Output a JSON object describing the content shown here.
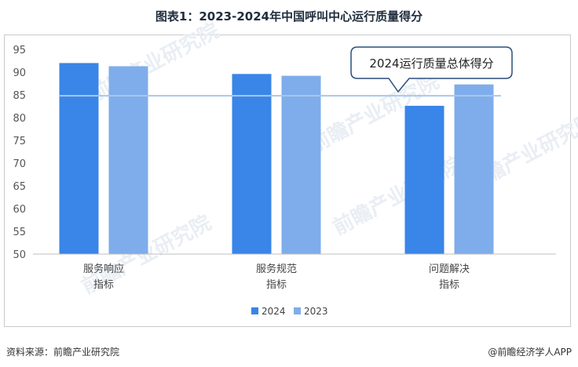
{
  "title": "图表1：2023-2024年中国呼叫中心运行质量得分",
  "source": "资料来源：前瞻产业研究院",
  "brand": "@前瞻经济学人APP",
  "watermark": "前瞻产业研究院",
  "colors": {
    "s2024": "#3a85e8",
    "s2023": "#7fadeb",
    "avg_line": "#a8c8ec"
  },
  "chart_data": {
    "type": "bar",
    "categories": [
      {
        "line1": "服务响应",
        "line2": "指标"
      },
      {
        "line1": "服务规范",
        "line2": "指标"
      },
      {
        "line1": "问题解决",
        "line2": "指标"
      }
    ],
    "series": [
      {
        "name": "2024",
        "values": [
          92.0,
          89.6,
          82.6
        ]
      },
      {
        "name": "2023",
        "values": [
          91.3,
          89.2,
          87.3
        ]
      }
    ],
    "ylim": [
      50,
      95
    ],
    "yticks": [
      50,
      55,
      60,
      65,
      70,
      75,
      80,
      85,
      90,
      95
    ],
    "reference_line": {
      "value": 84.8,
      "label": "2024运行质量总体得分"
    },
    "legend_position": "bottom-center",
    "grid": false
  }
}
